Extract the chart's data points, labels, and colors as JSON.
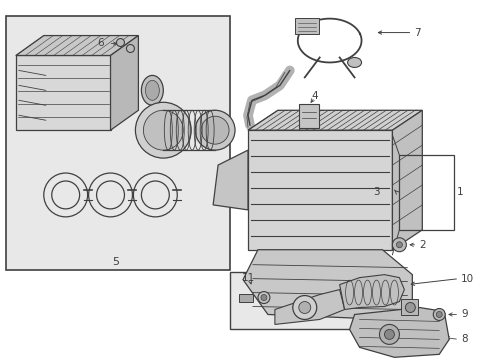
{
  "figsize": [
    4.89,
    3.6
  ],
  "dpi": 100,
  "bg_color": "#ffffff",
  "box_bg": "#e8e8e8",
  "line_color": "#404040",
  "label_color": "#111111",
  "diagram_bg": "#e0e0e0"
}
